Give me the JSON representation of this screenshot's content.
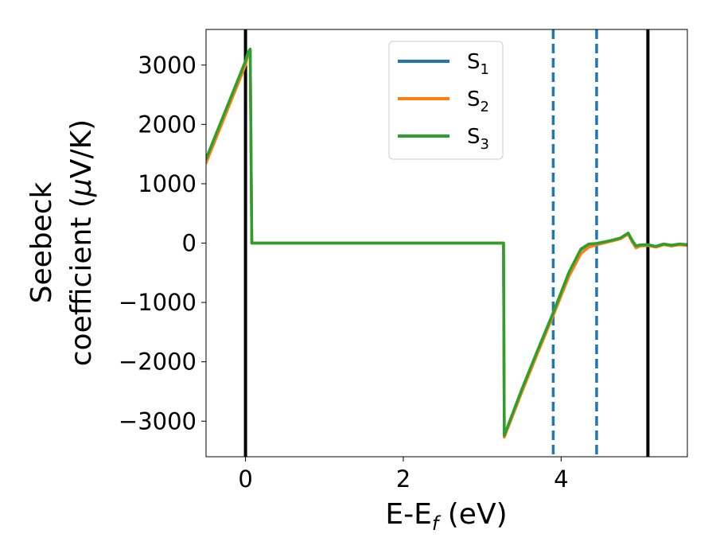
{
  "chart_data": {
    "type": "line",
    "xlabel": "E-E",
    "xlabel_sub": "f",
    "xlabel_unit": " (eV)",
    "ylabel_line1": "Seebeck",
    "ylabel_line2": "coefficient  (",
    "ylabel_mu": "μ",
    "ylabel_unit": "V/K)",
    "xlim": [
      -0.5,
      5.6
    ],
    "ylim": [
      -3600,
      3600
    ],
    "xticks": [
      0,
      2,
      4
    ],
    "xtick_labels": [
      "0",
      "2",
      "4"
    ],
    "yticks": [
      -3000,
      -2000,
      -1000,
      0,
      1000,
      2000,
      3000
    ],
    "ytick_labels": [
      "−3000",
      "−2000",
      "−1000",
      "0",
      "1000",
      "2000",
      "3000"
    ],
    "grid": false,
    "legend_position": "upper center",
    "series": [
      {
        "name": "S",
        "sub": "1",
        "color": "#1f77b4",
        "x": [
          -0.5,
          0.0,
          0.03,
          0.06,
          0.08,
          1.0,
          2.0,
          3.0,
          3.27,
          3.28,
          3.5,
          3.7,
          3.9,
          4.1,
          4.25,
          4.35,
          4.45,
          4.6,
          4.75,
          4.85,
          4.9,
          4.95,
          5.0,
          5.1,
          5.2,
          5.3,
          5.4,
          5.5,
          5.6
        ],
        "y": [
          1400,
          3050,
          3200,
          3250,
          0,
          0,
          0,
          0,
          0,
          -3250,
          -2480,
          -1820,
          -1180,
          -500,
          -110,
          -20,
          -10,
          30,
          80,
          160,
          40,
          -60,
          -40,
          -30,
          -60,
          -20,
          -40,
          -20,
          -30
        ]
      },
      {
        "name": "S",
        "sub": "2",
        "color": "#ff7f0e",
        "x": [
          -0.5,
          0.0,
          0.03,
          0.06,
          0.08,
          1.0,
          2.0,
          3.0,
          3.27,
          3.28,
          3.5,
          3.7,
          3.9,
          4.1,
          4.25,
          4.35,
          4.45,
          4.6,
          4.75,
          4.85,
          4.9,
          4.95,
          5.0,
          5.1,
          5.2,
          5.3,
          5.4,
          5.5,
          5.6
        ],
        "y": [
          1350,
          3000,
          3180,
          3230,
          0,
          0,
          0,
          0,
          0,
          -3270,
          -2520,
          -1860,
          -1220,
          -560,
          -180,
          -70,
          -30,
          20,
          70,
          150,
          20,
          -80,
          -50,
          -40,
          -70,
          -30,
          -50,
          -30,
          -40
        ]
      },
      {
        "name": "S",
        "sub": "3",
        "color": "#2ca02c",
        "x": [
          -0.5,
          0.0,
          0.03,
          0.06,
          0.08,
          1.0,
          2.0,
          3.0,
          3.27,
          3.28,
          3.5,
          3.7,
          3.9,
          4.1,
          4.25,
          4.35,
          4.45,
          4.6,
          4.75,
          4.85,
          4.9,
          4.95,
          5.0,
          5.1,
          5.2,
          5.3,
          5.4,
          5.5,
          5.6
        ],
        "y": [
          1420,
          3070,
          3210,
          3270,
          0,
          0,
          0,
          0,
          0,
          -3240,
          -2470,
          -1810,
          -1170,
          -490,
          -100,
          -15,
          -5,
          35,
          85,
          170,
          50,
          -50,
          -30,
          -25,
          -55,
          -15,
          -35,
          -15,
          -25
        ]
      }
    ],
    "vlines": [
      {
        "x": 0.0,
        "color": "#000000",
        "style": "solid"
      },
      {
        "x": 5.1,
        "color": "#000000",
        "style": "solid"
      },
      {
        "x": 3.9,
        "color": "#1f77b4",
        "style": "dashed"
      },
      {
        "x": 4.45,
        "color": "#1f77b4",
        "style": "dashed"
      }
    ]
  }
}
